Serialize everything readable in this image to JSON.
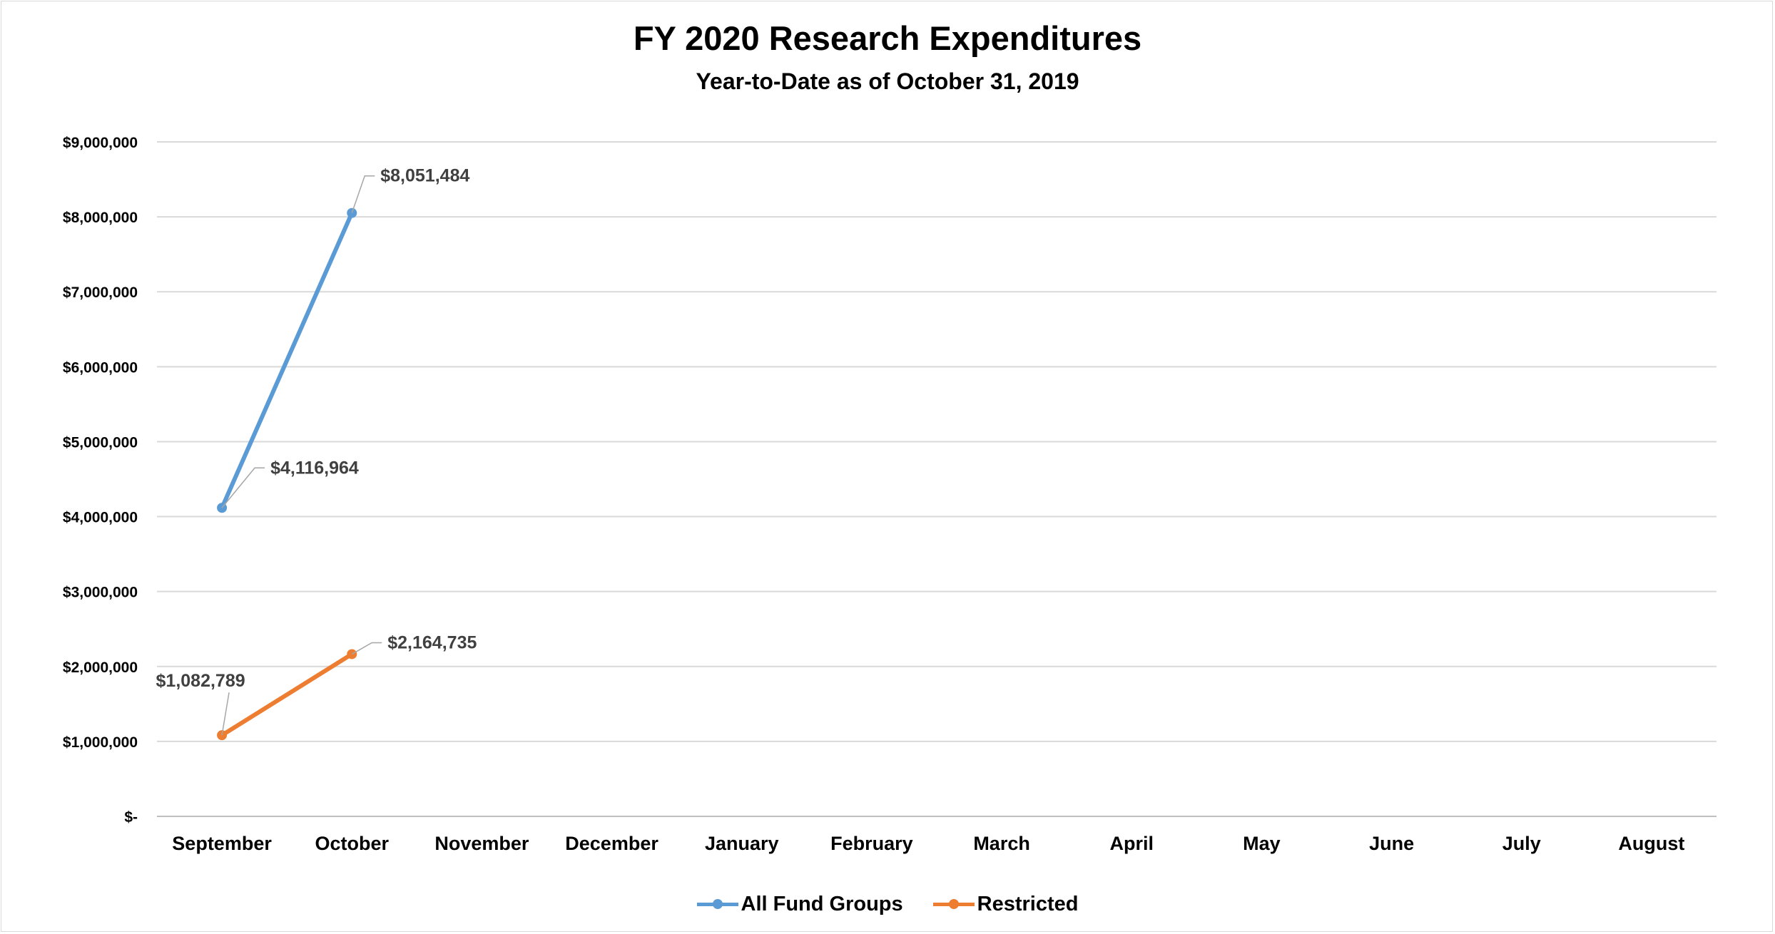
{
  "chart_data": {
    "type": "line",
    "title": "FY 2020 Research Expenditures",
    "subtitle": "Year-to-Date as of October 31, 2019",
    "categories": [
      "September",
      "October",
      "November",
      "December",
      "January",
      "February",
      "March",
      "April",
      "May",
      "June",
      "July",
      "August"
    ],
    "y_ticks": [
      "$-",
      "$1,000,000",
      "$2,000,000",
      "$3,000,000",
      "$4,000,000",
      "$5,000,000",
      "$6,000,000",
      "$7,000,000",
      "$8,000,000",
      "$9,000,000"
    ],
    "ylim": [
      0,
      9000000
    ],
    "grid": true,
    "legend_position": "bottom",
    "series": [
      {
        "name": "All Fund Groups",
        "color": "#5b9bd5",
        "values": [
          4116964,
          8051484,
          null,
          null,
          null,
          null,
          null,
          null,
          null,
          null,
          null,
          null
        ],
        "labels": [
          "$4,116,964",
          "$8,051,484"
        ]
      },
      {
        "name": "Restricted",
        "color": "#ed7d31",
        "values": [
          1082789,
          2164735,
          null,
          null,
          null,
          null,
          null,
          null,
          null,
          null,
          null,
          null
        ],
        "labels": [
          "$1,082,789",
          "$2,164,735"
        ]
      }
    ]
  }
}
